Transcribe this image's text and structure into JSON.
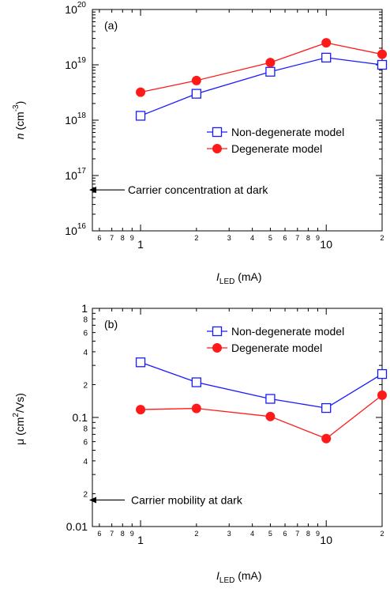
{
  "chart_data": [
    {
      "type": "line",
      "panel_label": "(a)",
      "xscale": "log",
      "yscale": "log",
      "xlim": [
        0.55,
        20
      ],
      "ylim": [
        1e+16,
        1e+20
      ],
      "x_major_ticks": [
        {
          "v": 1,
          "label": "1"
        },
        {
          "v": 10,
          "label": "10"
        }
      ],
      "x_minor_ticks": [
        {
          "v": 0.6,
          "label": "6"
        },
        {
          "v": 0.7,
          "label": "7"
        },
        {
          "v": 0.8,
          "label": "8"
        },
        {
          "v": 0.9,
          "label": "9"
        },
        {
          "v": 2,
          "label": "2"
        },
        {
          "v": 3,
          "label": "3"
        },
        {
          "v": 4,
          "label": "4"
        },
        {
          "v": 5,
          "label": "5"
        },
        {
          "v": 6,
          "label": "6"
        },
        {
          "v": 7,
          "label": "7"
        },
        {
          "v": 8,
          "label": "8"
        },
        {
          "v": 9,
          "label": "9"
        },
        {
          "v": 20,
          "label": "2"
        }
      ],
      "y_major_ticks": [
        {
          "v": 1e+16,
          "base": "10",
          "exp": "16"
        },
        {
          "v": 1e+17,
          "base": "10",
          "exp": "17"
        },
        {
          "v": 1e+18,
          "base": "10",
          "exp": "18"
        },
        {
          "v": 1e+19,
          "base": "10",
          "exp": "19"
        },
        {
          "v": 1e+20,
          "base": "10",
          "exp": "20"
        }
      ],
      "xlabel": {
        "italic": "I",
        "sub": "LED",
        "rest": " (mA)"
      },
      "ylabel": {
        "italic": "n",
        "rest": " (cm",
        "sup": "-3",
        "end": ")"
      },
      "x": [
        1,
        2,
        5,
        10,
        20
      ],
      "series": [
        {
          "name": "Non-degenerate model",
          "color": "#1a1aff",
          "marker": "open-square",
          "values": [
            1.2e+18,
            3e+18,
            7.5e+18,
            1.35e+19,
            1e+19
          ]
        },
        {
          "name": "Degenerate model",
          "color": "#ff1a1a",
          "marker": "filled-circle",
          "values": [
            3.2e+18,
            5.2e+18,
            1.1e+19,
            2.5e+19,
            1.55e+19
          ]
        }
      ],
      "legend_position": "right-center",
      "annotation": {
        "text": "Carrier concentration at dark",
        "y": 5.5e+16
      }
    },
    {
      "type": "line",
      "panel_label": "(b)",
      "xscale": "log",
      "yscale": "log",
      "xlim": [
        0.55,
        20
      ],
      "ylim": [
        0.01,
        1
      ],
      "x_major_ticks": [
        {
          "v": 1,
          "label": "1"
        },
        {
          "v": 10,
          "label": "10"
        }
      ],
      "x_minor_ticks": [
        {
          "v": 0.6,
          "label": "6"
        },
        {
          "v": 0.7,
          "label": "7"
        },
        {
          "v": 0.8,
          "label": "8"
        },
        {
          "v": 0.9,
          "label": "9"
        },
        {
          "v": 2,
          "label": "2"
        },
        {
          "v": 3,
          "label": "3"
        },
        {
          "v": 4,
          "label": "4"
        },
        {
          "v": 5,
          "label": "5"
        },
        {
          "v": 6,
          "label": "6"
        },
        {
          "v": 7,
          "label": "7"
        },
        {
          "v": 8,
          "label": "8"
        },
        {
          "v": 9,
          "label": "9"
        },
        {
          "v": 20,
          "label": "2"
        }
      ],
      "y_major_ticks": [
        {
          "v": 0.01,
          "label": "0.01"
        },
        {
          "v": 0.1,
          "label": "0.1"
        },
        {
          "v": 1,
          "label": "1"
        }
      ],
      "y_minor_ticks": [
        {
          "v": 0.02,
          "label": "2"
        },
        {
          "v": 0.04,
          "label": "4"
        },
        {
          "v": 0.06,
          "label": "6"
        },
        {
          "v": 0.08,
          "label": "8"
        },
        {
          "v": 0.2,
          "label": "2"
        },
        {
          "v": 0.4,
          "label": "4"
        },
        {
          "v": 0.6,
          "label": "6"
        },
        {
          "v": 0.8,
          "label": "8"
        }
      ],
      "xlabel": {
        "italic": "I",
        "sub": "LED",
        "rest": " (mA)"
      },
      "ylabel": {
        "text": "μ (cm",
        "sup": "2",
        "end": "/Vs)"
      },
      "x": [
        1,
        2,
        5,
        10,
        20
      ],
      "series": [
        {
          "name": "Non-degenerate model",
          "color": "#1a1aff",
          "marker": "open-square",
          "values": [
            0.32,
            0.21,
            0.148,
            0.122,
            0.25
          ]
        },
        {
          "name": "Degenerate model",
          "color": "#ff1a1a",
          "marker": "filled-circle",
          "values": [
            0.118,
            0.121,
            0.102,
            0.064,
            0.16
          ]
        }
      ],
      "legend_position": "top-right",
      "annotation": {
        "text": "Carrier mobility at dark",
        "y": 0.0175
      }
    }
  ]
}
